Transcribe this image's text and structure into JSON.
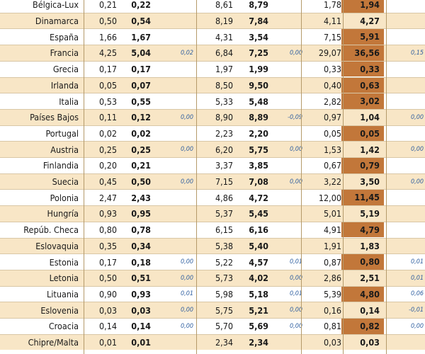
{
  "rows": [
    {
      "country": "Bélgica-Lux",
      "a1": "0,21",
      "a2": "0,22",
      "a3": "",
      "b1": "8,61",
      "b2": "8,79",
      "b3": "",
      "c1": "1,78",
      "c2": "1,94",
      "c3": "",
      "shaded": false
    },
    {
      "country": "Dinamarca",
      "a1": "0,50",
      "a2": "0,54",
      "a3": "",
      "b1": "8,19",
      "b2": "7,84",
      "b3": "",
      "c1": "4,11",
      "c2": "4,27",
      "c3": "",
      "shaded": true
    },
    {
      "country": "España",
      "a1": "1,66",
      "a2": "1,67",
      "a3": "",
      "b1": "4,31",
      "b2": "3,54",
      "b3": "",
      "c1": "7,15",
      "c2": "5,91",
      "c3": "",
      "shaded": false
    },
    {
      "country": "Francia",
      "a1": "4,25",
      "a2": "5,04",
      "a3": "0,02",
      "b1": "6,84",
      "b2": "7,25",
      "b3": "0,00",
      "c1": "29,07",
      "c2": "36,56",
      "c3": "0,15",
      "shaded": true
    },
    {
      "country": "Grecia",
      "a1": "0,17",
      "a2": "0,17",
      "a3": "",
      "b1": "1,97",
      "b2": "1,99",
      "b3": "",
      "c1": "0,33",
      "c2": "0,33",
      "c3": "",
      "shaded": false
    },
    {
      "country": "Irlanda",
      "a1": "0,05",
      "a2": "0,07",
      "a3": "",
      "b1": "8,50",
      "b2": "9,50",
      "b3": "",
      "c1": "0,40",
      "c2": "0,63",
      "c3": "",
      "shaded": true
    },
    {
      "country": "Italia",
      "a1": "0,53",
      "a2": "0,55",
      "a3": "",
      "b1": "5,33",
      "b2": "5,48",
      "b3": "",
      "c1": "2,82",
      "c2": "3,02",
      "c3": "",
      "shaded": false
    },
    {
      "country": "Países Bajos",
      "a1": "0,11",
      "a2": "0,12",
      "a3": "0,00",
      "b1": "8,90",
      "b2": "8,89",
      "b3": "-0,09",
      "c1": "0,97",
      "c2": "1,04",
      "c3": "0,00",
      "shaded": true
    },
    {
      "country": "Portugal",
      "a1": "0,02",
      "a2": "0,02",
      "a3": "",
      "b1": "2,23",
      "b2": "2,20",
      "b3": "",
      "c1": "0,05",
      "c2": "0,05",
      "c3": "",
      "shaded": false
    },
    {
      "country": "Austria",
      "a1": "0,25",
      "a2": "0,25",
      "a3": "0,00",
      "b1": "6,20",
      "b2": "5,75",
      "b3": "0,00",
      "c1": "1,53",
      "c2": "1,42",
      "c3": "0,00",
      "shaded": true
    },
    {
      "country": "Finlandia",
      "a1": "0,20",
      "a2": "0,21",
      "a3": "",
      "b1": "3,37",
      "b2": "3,85",
      "b3": "",
      "c1": "0,67",
      "c2": "0,79",
      "c3": "",
      "shaded": false
    },
    {
      "country": "Suecia",
      "a1": "0,45",
      "a2": "0,50",
      "a3": "0,00",
      "b1": "7,15",
      "b2": "7,08",
      "b3": "0,00",
      "c1": "3,22",
      "c2": "3,50",
      "c3": "0,00",
      "shaded": true
    },
    {
      "country": "Polonia",
      "a1": "2,47",
      "a2": "2,43",
      "a3": "",
      "b1": "4,86",
      "b2": "4,72",
      "b3": "",
      "c1": "12,00",
      "c2": "11,45",
      "c3": "",
      "shaded": false
    },
    {
      "country": "Hungría",
      "a1": "0,93",
      "a2": "0,95",
      "a3": "",
      "b1": "5,37",
      "b2": "5,45",
      "b3": "",
      "c1": "5,01",
      "c2": "5,19",
      "c3": "",
      "shaded": true
    },
    {
      "country": "Repúb. Checa",
      "a1": "0,80",
      "a2": "0,78",
      "a3": "",
      "b1": "6,15",
      "b2": "6,16",
      "b3": "",
      "c1": "4,91",
      "c2": "4,79",
      "c3": "",
      "shaded": false
    },
    {
      "country": "Eslovaquia",
      "a1": "0,35",
      "a2": "0,34",
      "a3": "",
      "b1": "5,38",
      "b2": "5,40",
      "b3": "",
      "c1": "1,91",
      "c2": "1,83",
      "c3": "",
      "shaded": true
    },
    {
      "country": "Estonia",
      "a1": "0,17",
      "a2": "0,18",
      "a3": "0,00",
      "b1": "5,22",
      "b2": "4,57",
      "b3": "0,01",
      "c1": "0,87",
      "c2": "0,80",
      "c3": "0,01",
      "shaded": false
    },
    {
      "country": "Letonia",
      "a1": "0,50",
      "a2": "0,51",
      "a3": "0,00",
      "b1": "5,73",
      "b2": "4,02",
      "b3": "0,00",
      "c1": "2,86",
      "c2": "2,51",
      "c3": "0,01",
      "shaded": true
    },
    {
      "country": "Lituania",
      "a1": "0,90",
      "a2": "0,93",
      "a3": "0,01",
      "b1": "5,98",
      "b2": "5,18",
      "b3": "0,01",
      "c1": "5,39",
      "c2": "4,80",
      "c3": "0,06",
      "shaded": false
    },
    {
      "country": "Eslovenia",
      "a1": "0,03",
      "a2": "0,03",
      "a3": "0,00",
      "b1": "5,75",
      "b2": "5,21",
      "b3": "0,00",
      "c1": "0,16",
      "c2": "0,14",
      "c3": "-0,01",
      "shaded": true
    },
    {
      "country": "Croacia",
      "a1": "0,14",
      "a2": "0,14",
      "a3": "0,00",
      "b1": "5,70",
      "b2": "5,69",
      "b3": "0,00",
      "c1": "0,81",
      "c2": "0,82",
      "c3": "0,00",
      "shaded": false
    },
    {
      "country": "Chipre/Malta",
      "a1": "0,01",
      "a2": "0,01",
      "a3": "",
      "b1": "2,34",
      "b2": "2,34",
      "b3": "",
      "c1": "0,03",
      "c2": "0,03",
      "c3": "",
      "shaded": true
    }
  ],
  "highlight_rows_c2": [
    "Bélgica-Lux",
    "España",
    "Francia",
    "Grecia",
    "Irlanda",
    "Italia",
    "Portugal",
    "Finlandia",
    "Polonia",
    "Repúb. Checa",
    "Estonia",
    "Lituania",
    "Croacia"
  ],
  "colors": {
    "shade": "#f8e6c6",
    "highlight": "#c2773a",
    "italic_blue": "#2f5fa0"
  }
}
